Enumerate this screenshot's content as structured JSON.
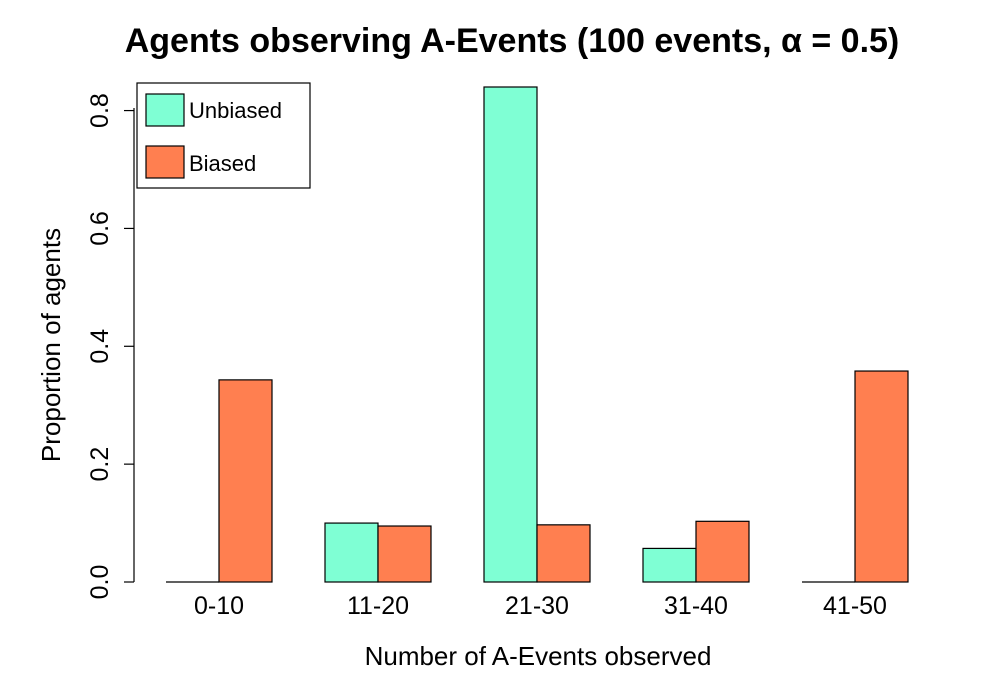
{
  "chart_data": {
    "type": "bar",
    "title": "Agents observing A-Events (100 events, α = 0.5)",
    "xlabel": "Number of A-Events observed",
    "ylabel": "Proportion of agents",
    "categories": [
      "0-10",
      "11-20",
      "21-30",
      "31-40",
      "41-50"
    ],
    "series": [
      {
        "name": "Unbiased",
        "color": "#7fffd4",
        "values": [
          0.0,
          0.1,
          0.84,
          0.057,
          0.0
        ]
      },
      {
        "name": "Biased",
        "color": "#ff7f50",
        "values": [
          0.343,
          0.095,
          0.097,
          0.103,
          0.358
        ]
      }
    ],
    "yticks": [
      "0.0",
      "0.2",
      "0.4",
      "0.6",
      "0.8"
    ],
    "ytick_values": [
      0.0,
      0.2,
      0.4,
      0.6,
      0.8
    ],
    "ylim": [
      0,
      0.84
    ],
    "grid": false,
    "legend_position": "top-left"
  }
}
